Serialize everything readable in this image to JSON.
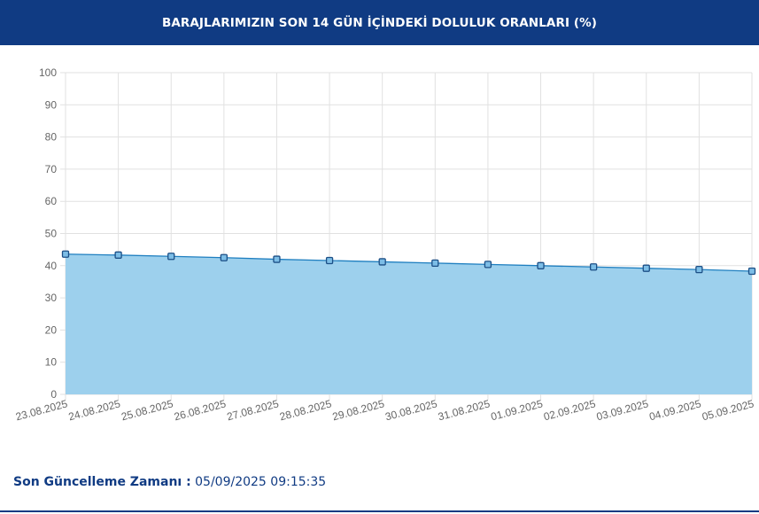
{
  "header": {
    "title": "BARAJLARIMIZIN SON 14 GÜN İÇİNDEKİ DOLULUK ORANLARI (%)"
  },
  "chart_data": {
    "type": "area",
    "title": "BARAJLARIMIZIN SON 14 GÜN İÇİNDEKİ DOLULUK ORANLARI (%)",
    "xlabel": "",
    "ylabel": "",
    "ylim": [
      0,
      100
    ],
    "yticks": [
      0,
      10,
      20,
      30,
      40,
      50,
      60,
      70,
      80,
      90,
      100
    ],
    "grid": true,
    "categories": [
      "23.08.2025",
      "24.08.2025",
      "25.08.2025",
      "26.08.2025",
      "27.08.2025",
      "28.08.2025",
      "29.08.2025",
      "30.08.2025",
      "31.08.2025",
      "01.09.2025",
      "02.09.2025",
      "03.09.2025",
      "04.09.2025",
      "05.09.2025"
    ],
    "series": [
      {
        "values": [
          43.6,
          43.3,
          42.9,
          42.5,
          42.0,
          41.6,
          41.2,
          40.8,
          40.4,
          40.0,
          39.6,
          39.2,
          38.8,
          38.3
        ],
        "line_color": "#1f7fc0",
        "fill_color": "#9dd0ed",
        "marker_color": "#7cbde6",
        "marker_border": "#1c4f86"
      }
    ]
  },
  "footer": {
    "label": "Son Güncelleme Zamanı :",
    "value": "05/09/2025 09:15:35"
  }
}
